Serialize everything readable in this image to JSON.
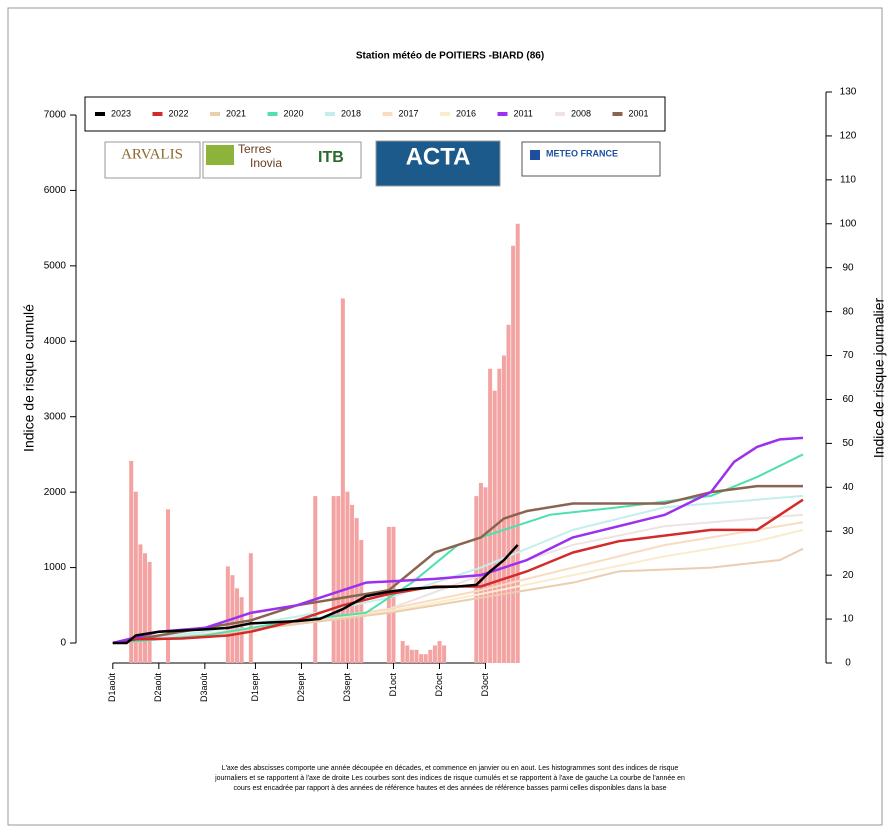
{
  "chart_data": {
    "type": "bar_line",
    "title": "Station météo de POITIERS -BIARD (86)",
    "ylabel": "Indice de risque cumulé",
    "y2label": "Indice de risque journalier",
    "xlim": [
      -8,
      155
    ],
    "xticks": [
      {
        "value": 0,
        "label": "D1août"
      },
      {
        "value": 10,
        "label": "D2août"
      },
      {
        "value": 20,
        "label": "D3août"
      },
      {
        "value": 31,
        "label": "D1sept"
      },
      {
        "value": 41,
        "label": "D2sept"
      },
      {
        "value": 51,
        "label": "D3sept"
      },
      {
        "value": 61,
        "label": "D1oct"
      },
      {
        "value": 71,
        "label": "D2oct"
      },
      {
        "value": 81,
        "label": "D3oct"
      }
    ],
    "ylim": [
      -265,
      7305
    ],
    "yticks": [
      0,
      1000,
      2000,
      3000,
      4000,
      5000,
      6000,
      7000
    ],
    "y2lim": [
      0,
      130
    ],
    "y2ticks": [
      0,
      10,
      20,
      30,
      40,
      50,
      60,
      70,
      80,
      90,
      100,
      110,
      120,
      130
    ],
    "bars": {
      "axis": "y2",
      "color": "#f4a3a3",
      "x": [
        4,
        5,
        6,
        7,
        8,
        12,
        25,
        26,
        27,
        28,
        30,
        44,
        48,
        49,
        50,
        51,
        52,
        53,
        54,
        60,
        61,
        63,
        64,
        65,
        66,
        67,
        68,
        69,
        70,
        71,
        72,
        79,
        80,
        81,
        82,
        83,
        84,
        85,
        86,
        87,
        88
      ],
      "values": [
        46,
        39,
        27,
        25,
        23,
        35,
        22,
        20,
        17,
        15,
        25,
        38,
        38,
        38,
        83,
        39,
        36,
        33,
        28,
        31,
        31,
        5,
        4,
        3,
        3,
        2,
        2,
        3,
        4,
        5,
        4,
        38,
        41,
        40,
        67,
        62,
        67,
        70,
        77,
        95,
        100
      ]
    },
    "series": [
      {
        "name": "2008",
        "color": "#eee2e2",
        "x": [
          0,
          20,
          40,
          60,
          80,
          100,
          120,
          140,
          150
        ],
        "values": [
          0,
          120,
          280,
          450,
          900,
          1300,
          1550,
          1650,
          1700
        ]
      },
      {
        "name": "2016",
        "color": "#fbeccc",
        "x": [
          0,
          20,
          40,
          60,
          80,
          100,
          120,
          140,
          150
        ],
        "values": [
          0,
          100,
          250,
          420,
          650,
          900,
          1150,
          1350,
          1500
        ]
      },
      {
        "name": "2017",
        "color": "#f9dcc0",
        "x": [
          0,
          20,
          40,
          60,
          80,
          100,
          120,
          140,
          150
        ],
        "values": [
          0,
          110,
          270,
          450,
          700,
          1000,
          1300,
          1500,
          1600
        ]
      },
      {
        "name": "2018",
        "color": "#c4eeee",
        "x": [
          0,
          20,
          40,
          60,
          80,
          100,
          120,
          140,
          150
        ],
        "values": [
          0,
          150,
          350,
          600,
          1000,
          1500,
          1800,
          1900,
          1950
        ]
      },
      {
        "name": "2021",
        "color": "#ebcdb0",
        "x": [
          0,
          20,
          40,
          60,
          80,
          100,
          110,
          130,
          145,
          150
        ],
        "values": [
          0,
          100,
          250,
          400,
          600,
          800,
          950,
          1000,
          1100,
          1250
        ]
      },
      {
        "name": "2020",
        "color": "#4fe0ac",
        "x": [
          0,
          20,
          40,
          55,
          65,
          75,
          85,
          95,
          110,
          130,
          140,
          150
        ],
        "values": [
          0,
          100,
          300,
          400,
          800,
          1300,
          1500,
          1700,
          1800,
          1950,
          2200,
          2500
        ]
      },
      {
        "name": "2001",
        "color": "#8b6450",
        "x": [
          0,
          10,
          20,
          30,
          40,
          50,
          60,
          70,
          80,
          85,
          90,
          100,
          120,
          130,
          140,
          150
        ],
        "values": [
          0,
          100,
          200,
          300,
          500,
          600,
          700,
          1200,
          1400,
          1650,
          1750,
          1850,
          1850,
          2000,
          2080,
          2080
        ]
      },
      {
        "name": "2022",
        "color": "#d42a2a",
        "x": [
          0,
          5,
          15,
          25,
          30,
          40,
          50,
          60,
          70,
          80,
          90,
          100,
          110,
          130,
          140,
          145,
          150
        ],
        "values": [
          0,
          50,
          60,
          100,
          150,
          300,
          500,
          650,
          750,
          750,
          950,
          1200,
          1350,
          1500,
          1500,
          1700,
          1900
        ]
      },
      {
        "name": "2011",
        "color": "#9b30f0",
        "x": [
          0,
          10,
          20,
          25,
          30,
          40,
          50,
          55,
          70,
          80,
          90,
          100,
          120,
          130,
          135,
          140,
          145,
          150
        ],
        "values": [
          0,
          150,
          200,
          300,
          400,
          500,
          700,
          800,
          850,
          900,
          1100,
          1400,
          1700,
          2000,
          2400,
          2600,
          2700,
          2720
        ]
      },
      {
        "name": "2023",
        "color": "#000000",
        "x": [
          0,
          3,
          5,
          10,
          20,
          25,
          30,
          40,
          45,
          50,
          55,
          60,
          65,
          70,
          75,
          79,
          82,
          85,
          88
        ],
        "values": [
          0,
          0,
          100,
          150,
          180,
          200,
          260,
          290,
          320,
          450,
          620,
          680,
          720,
          740,
          750,
          770,
          950,
          1100,
          1300
        ]
      }
    ],
    "legend_order": [
      9,
      7,
      4,
      5,
      3,
      2,
      1,
      8,
      0,
      6
    ]
  },
  "logos": [
    "ARVALIS",
    "Terres",
    "Inovia",
    "ITB",
    "ACTA",
    "METEO FRANCE"
  ],
  "footnote": [
    "L'axe des abscisses comporte une année découpée en décades, et commence en janvier  ou en aout. Les histogrammes sont des indices de risque",
    "journaliers et se rapportent à l'axe de droite Les courbes sont des indices de risque cumulés et se rapportent à l'axe de gauche La courbe de l'année en",
    "cours est encadrée par rapport à des années de référence hautes et des années de référence basses parmi celles disponibles dans la base"
  ]
}
